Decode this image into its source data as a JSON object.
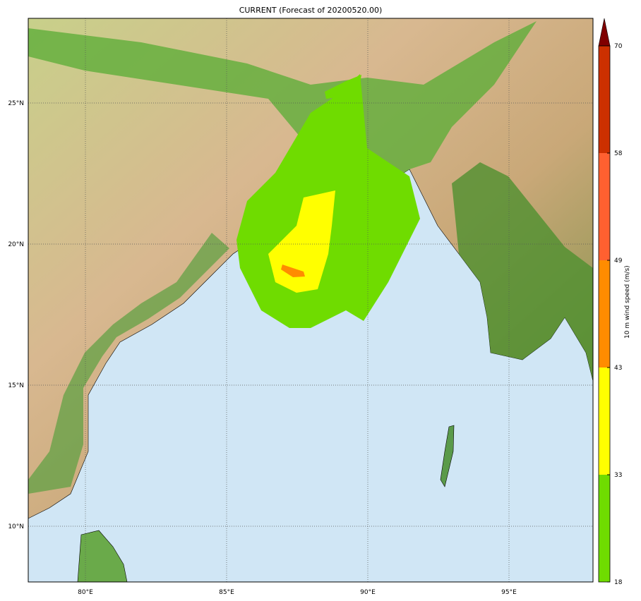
{
  "title": "CURRENT (Forecast of 20200520.00)",
  "map": {
    "lon_range": [
      78,
      98
    ],
    "lat_range": [
      8,
      28
    ],
    "lon_ticks": [
      "80°E",
      "85°E",
      "90°E",
      "95°E"
    ],
    "lat_ticks": [
      "10°N",
      "15°N",
      "20°N",
      "25°N"
    ],
    "grid": "dotted",
    "ocean_color": "#d0e6f5"
  },
  "colorbar": {
    "label": "10 m wind speed (m/s)",
    "ticks": [
      "18",
      "33",
      "43",
      "49",
      "58",
      "70"
    ],
    "colors": [
      "#6fdc00",
      "#ffff00",
      "#ff8c00",
      "#ff6030",
      "#cc3000"
    ],
    "extend_color": "#800000",
    "extend": "max"
  }
}
